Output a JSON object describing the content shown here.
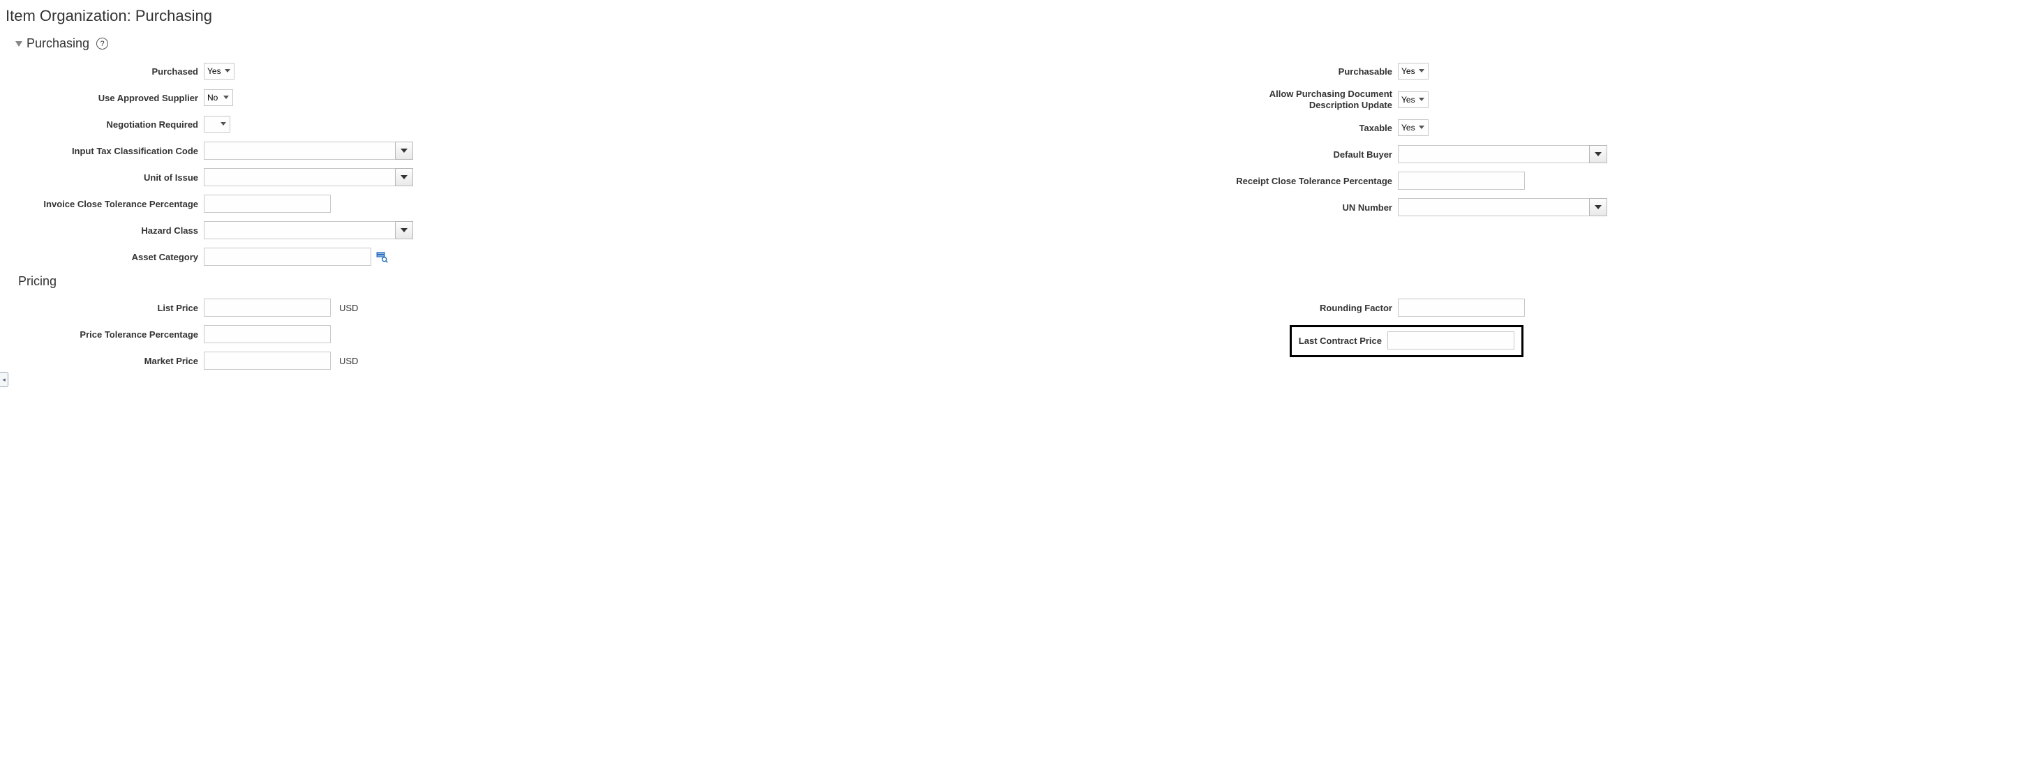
{
  "page_title": "Item Organization: Purchasing",
  "section": {
    "title": "Purchasing"
  },
  "left": {
    "purchased": {
      "label": "Purchased",
      "value": "Yes"
    },
    "use_approved_supplier": {
      "label": "Use Approved Supplier",
      "value": "No"
    },
    "negotiation_required": {
      "label": "Negotiation Required",
      "value": ""
    },
    "input_tax_code": {
      "label": "Input Tax Classification Code",
      "value": ""
    },
    "unit_of_issue": {
      "label": "Unit of Issue",
      "value": ""
    },
    "invoice_close_tol": {
      "label": "Invoice Close Tolerance Percentage",
      "value": ""
    },
    "hazard_class": {
      "label": "Hazard Class",
      "value": ""
    },
    "asset_category": {
      "label": "Asset Category",
      "value": ""
    }
  },
  "right": {
    "purchasable": {
      "label": "Purchasable",
      "value": "Yes"
    },
    "allow_doc_desc_update": {
      "label": "Allow Purchasing Document Description Update",
      "value": "Yes"
    },
    "taxable": {
      "label": "Taxable",
      "value": "Yes"
    },
    "default_buyer": {
      "label": "Default Buyer",
      "value": ""
    },
    "receipt_close_tol": {
      "label": "Receipt Close Tolerance Percentage",
      "value": ""
    },
    "un_number": {
      "label": "UN Number",
      "value": ""
    }
  },
  "pricing": {
    "title": "Pricing",
    "list_price": {
      "label": "List Price",
      "value": "",
      "currency": "USD"
    },
    "price_tol": {
      "label": "Price Tolerance Percentage",
      "value": ""
    },
    "market_price": {
      "label": "Market Price",
      "value": "",
      "currency": "USD"
    },
    "rounding_factor": {
      "label": "Rounding Factor",
      "value": ""
    },
    "last_contract_price": {
      "label": "Last Contract Price",
      "value": ""
    }
  }
}
